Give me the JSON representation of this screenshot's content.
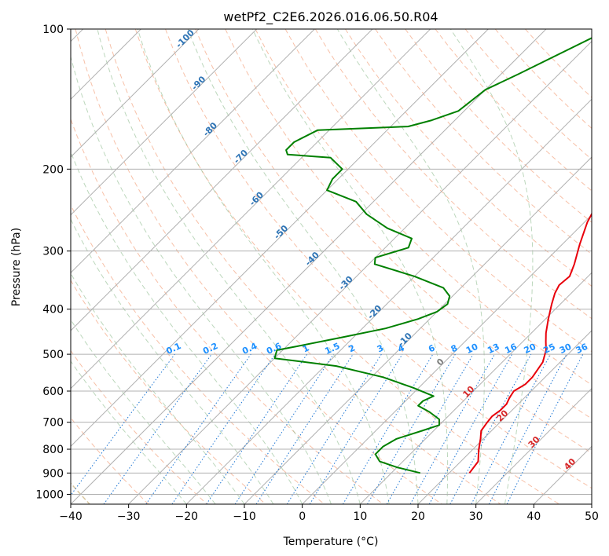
{
  "chart_data": {
    "type": "line",
    "title": "wetPf2_C2E6.2026.016.06.50.R04",
    "xlabel": "Temperature (°C)",
    "ylabel": "Pressure (hPa)",
    "xlim": [
      -40,
      50
    ],
    "ylim": [
      1050,
      100
    ],
    "x_ticks": [
      -40,
      -30,
      -20,
      -10,
      0,
      10,
      20,
      30,
      40,
      50
    ],
    "x_tick_labels": [
      "−40",
      "−30",
      "−20",
      "−10",
      "0",
      "10",
      "20",
      "30",
      "40",
      "50"
    ],
    "y_ticks": [
      100,
      200,
      300,
      400,
      500,
      600,
      700,
      800,
      900,
      1000
    ],
    "y_tick_labels": [
      "100",
      "200",
      "300",
      "400",
      "500",
      "600",
      "700",
      "800",
      "900",
      "1000"
    ],
    "grid": true,
    "skew": 35,
    "series": [
      {
        "name": "Temperature",
        "color": "#e8000b",
        "points": [
          [
            23.5,
            900
          ],
          [
            23,
            850
          ],
          [
            21,
            800
          ],
          [
            19.5,
            760
          ],
          [
            18.2,
            730
          ],
          [
            17.8,
            700
          ],
          [
            17.6,
            680
          ],
          [
            18,
            660
          ],
          [
            18,
            640
          ],
          [
            17.4,
            620
          ],
          [
            17,
            600
          ],
          [
            17.8,
            580
          ],
          [
            17.8,
            560
          ],
          [
            17,
            520
          ],
          [
            15.5,
            490
          ],
          [
            14,
            470
          ],
          [
            12.5,
            450
          ],
          [
            10.5,
            420
          ],
          [
            8.5,
            390
          ],
          [
            7.2,
            370
          ],
          [
            6.5,
            355
          ],
          [
            6.8,
            340
          ],
          [
            5.5,
            320
          ],
          [
            3,
            290
          ],
          [
            0.5,
            260
          ],
          [
            -1.5,
            230
          ],
          [
            -3.5,
            200
          ],
          [
            -3.8,
            190
          ],
          [
            -1.5,
            175
          ],
          [
            0,
            168
          ],
          [
            -0.5,
            160
          ],
          [
            -3.5,
            150
          ],
          [
            -7,
            140
          ],
          [
            -10.5,
            130
          ],
          [
            -14.5,
            115
          ],
          [
            -17,
            100
          ]
        ]
      },
      {
        "name": "Dewpoint",
        "color": "#008000",
        "points": [
          [
            15,
            900
          ],
          [
            10,
            875
          ],
          [
            6,
            850
          ],
          [
            4,
            820
          ],
          [
            4,
            790
          ],
          [
            5,
            760
          ],
          [
            8,
            730
          ],
          [
            10,
            710
          ],
          [
            9,
            690
          ],
          [
            6,
            665
          ],
          [
            3,
            645
          ],
          [
            3,
            630
          ],
          [
            4,
            615
          ],
          [
            -1,
            590
          ],
          [
            -8,
            560
          ],
          [
            -18,
            530
          ],
          [
            -30,
            510
          ],
          [
            -31,
            490
          ],
          [
            -28,
            480
          ],
          [
            -22,
            460
          ],
          [
            -16,
            440
          ],
          [
            -12,
            420
          ],
          [
            -10,
            405
          ],
          [
            -9.5,
            390
          ],
          [
            -10.5,
            375
          ],
          [
            -13,
            360
          ],
          [
            -20,
            340
          ],
          [
            -29,
            320
          ],
          [
            -30,
            310
          ],
          [
            -26,
            295
          ],
          [
            -27,
            282
          ],
          [
            -33,
            268
          ],
          [
            -39,
            250
          ],
          [
            -43,
            235
          ],
          [
            -50,
            222
          ],
          [
            -51,
            210
          ],
          [
            -51,
            200
          ],
          [
            -55,
            189
          ],
          [
            -63,
            186
          ],
          [
            -64,
            182
          ],
          [
            -64,
            175
          ],
          [
            -62,
            165
          ],
          [
            -47,
            162
          ],
          [
            -44,
            157
          ],
          [
            -41,
            150
          ],
          [
            -40,
            135
          ],
          [
            -37,
            125
          ],
          [
            -29,
            100
          ]
        ]
      }
    ],
    "dry_adiabats_c": [
      -30,
      -20,
      -10,
      0,
      10,
      20,
      30,
      40,
      50,
      60,
      70,
      80,
      90,
      100,
      110,
      120,
      130,
      140,
      150,
      160,
      170
    ],
    "moist_adiabats_c": [
      -20,
      -15,
      -10,
      -5,
      0,
      5,
      10,
      15,
      20,
      25,
      30,
      35
    ],
    "mixing_ratio_lines": [
      "0.1",
      "0.2",
      "0.4",
      "0.6",
      "1",
      "1.5",
      "2",
      "3",
      "4",
      "6",
      "8",
      "10",
      "13",
      "16",
      "20",
      "25",
      "30",
      "36"
    ],
    "height_labels": [
      {
        "text": "-100",
        "p": 106,
        "color": "#2e74b5"
      },
      {
        "text": "-90",
        "p": 132,
        "color": "#2e74b5"
      },
      {
        "text": "-80",
        "p": 166,
        "color": "#2e74b5"
      },
      {
        "text": "-70",
        "p": 190,
        "color": "#2e74b5"
      },
      {
        "text": "-60",
        "p": 234,
        "color": "#2e74b5"
      },
      {
        "text": "-50",
        "p": 276,
        "color": "#2e74b5"
      },
      {
        "text": "-40",
        "p": 315,
        "color": "#2e74b5"
      },
      {
        "text": "-30",
        "p": 355,
        "color": "#2e74b5"
      },
      {
        "text": "-20",
        "p": 410,
        "color": "#2e74b5"
      },
      {
        "text": "-10",
        "p": 470,
        "color": "#2e74b5"
      },
      {
        "text": "0",
        "p": 525,
        "color": "#808080"
      },
      {
        "text": "10",
        "p": 608,
        "color": "#d62728"
      },
      {
        "text": "20",
        "p": 685,
        "color": "#d62728"
      },
      {
        "text": "30",
        "p": 780,
        "color": "#d62728"
      },
      {
        "text": "40",
        "p": 870,
        "color": "#d62728"
      }
    ]
  }
}
